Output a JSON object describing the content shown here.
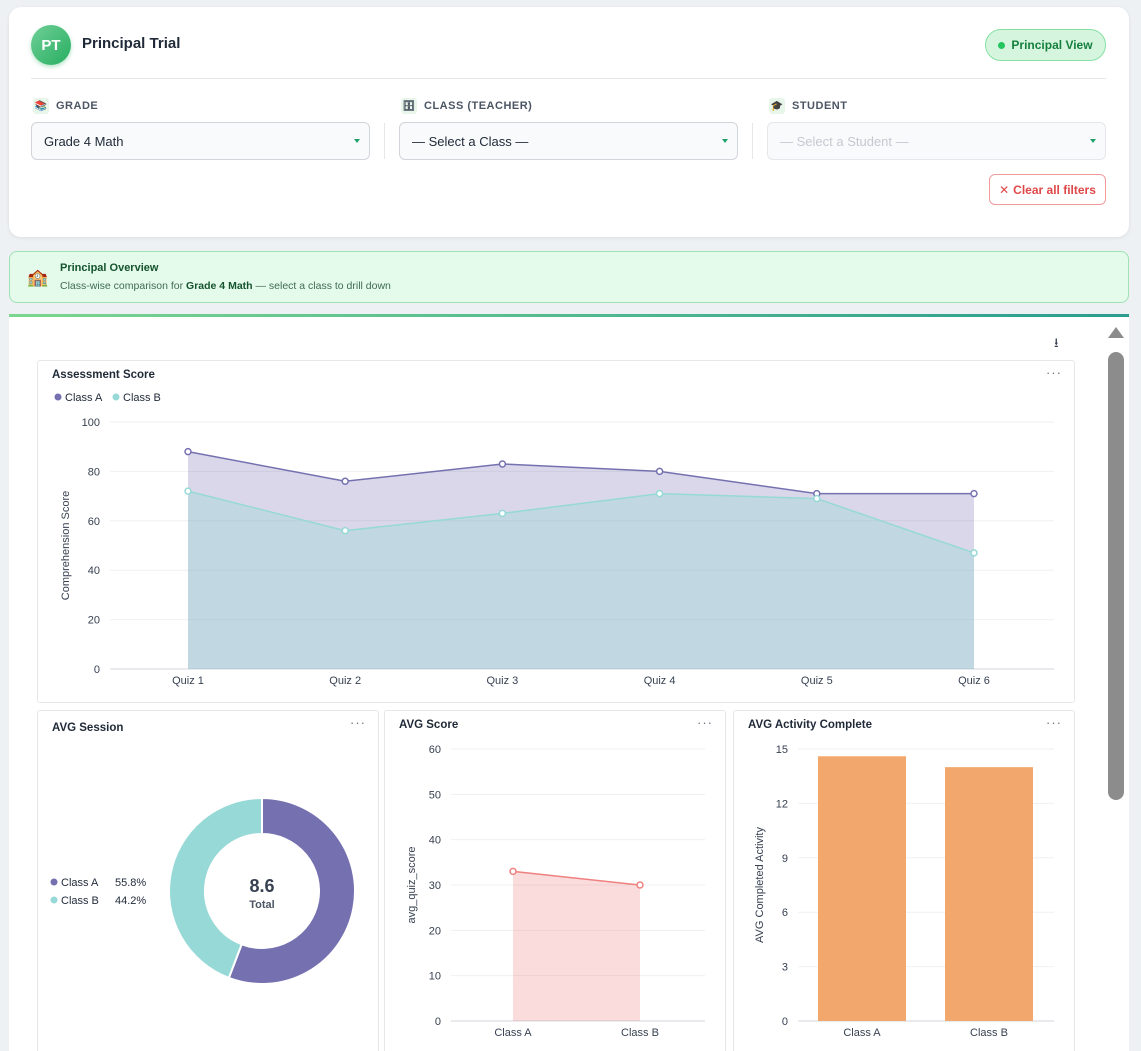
{
  "header": {
    "avatar_initials": "PT",
    "title": "Principal Trial",
    "view_badge": "Principal View"
  },
  "filters": {
    "grade": {
      "label": "GRADE",
      "value": "Grade 4 Math",
      "icon": "books-icon"
    },
    "class": {
      "label": "CLASS (TEACHER)",
      "value": "— Select a Class —",
      "icon": "lockers-icon"
    },
    "student": {
      "label": "STUDENT",
      "placeholder": "— Select a Student —",
      "icon": "graduation-cap-icon"
    },
    "clear_label": "Clear all filters"
  },
  "overview": {
    "title": "Principal Overview",
    "sub_prefix": "Class-wise comparison for ",
    "sub_grade": "Grade 4 Math",
    "sub_suffix": " — select a class to drill down"
  },
  "colors": {
    "class_a": "#7571b0",
    "class_b": "#96d9d6",
    "score_line": "#ef8080",
    "bar": "#f2a86c",
    "accent_green": "#22c55e"
  },
  "chart_data": [
    {
      "type": "area",
      "title": "Assessment Score",
      "ylabel": "Comprehension Score",
      "xlabel": "",
      "categories": [
        "Quiz 1",
        "Quiz 2",
        "Quiz 3",
        "Quiz 4",
        "Quiz 5",
        "Quiz 6"
      ],
      "series": [
        {
          "name": "Class A",
          "values": [
            88,
            76,
            83,
            80,
            71,
            71
          ]
        },
        {
          "name": "Class B",
          "values": [
            72,
            56,
            63,
            71,
            69,
            47
          ]
        }
      ],
      "ylim": [
        0,
        100
      ],
      "yticks": [
        0,
        20,
        40,
        60,
        80,
        100
      ],
      "legend": "top-left",
      "grid": true
    },
    {
      "type": "pie",
      "title": "AVG Session",
      "center_value": "8.6",
      "center_label": "Total",
      "slices": [
        {
          "name": "Class A",
          "percent": 55.8,
          "percent_label": "55.8%"
        },
        {
          "name": "Class B",
          "percent": 44.2,
          "percent_label": "44.2%"
        }
      ],
      "legend": "left"
    },
    {
      "type": "area",
      "title": "AVG Score",
      "ylabel": "avg_quiz_score",
      "categories": [
        "Class A",
        "Class B"
      ],
      "values": [
        33,
        30
      ],
      "ylim": [
        0,
        60
      ],
      "yticks": [
        0,
        10,
        20,
        30,
        40,
        50,
        60
      ],
      "grid": true
    },
    {
      "type": "bar",
      "title": "AVG Activity Complete",
      "ylabel": "AVG Completed Activity",
      "categories": [
        "Class A",
        "Class B"
      ],
      "values": [
        14.6,
        14.0
      ],
      "ylim": [
        0,
        15
      ],
      "yticks": [
        0,
        3,
        6,
        9,
        12,
        15
      ],
      "grid": true
    }
  ]
}
